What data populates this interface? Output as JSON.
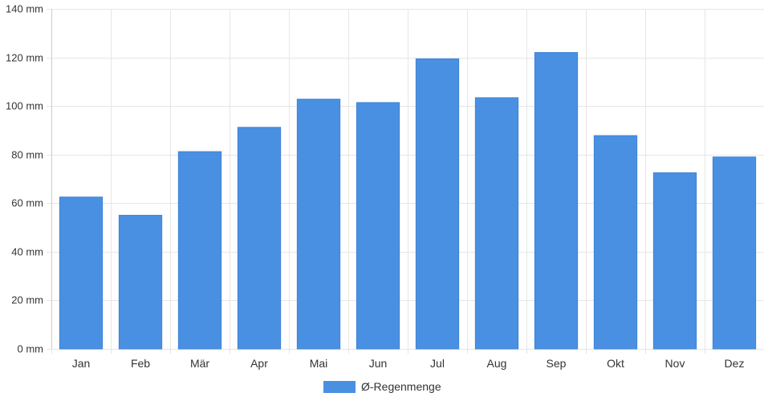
{
  "chart_data": {
    "type": "bar",
    "categories": [
      "Jan",
      "Feb",
      "Mär",
      "Apr",
      "Mai",
      "Jun",
      "Jul",
      "Aug",
      "Sep",
      "Okt",
      "Nov",
      "Dez"
    ],
    "series": [
      {
        "name": "Ø-Regenmenge",
        "values": [
          62.5,
          55,
          81.2,
          91.2,
          102.8,
          101.4,
          119.4,
          103.4,
          122,
          87.8,
          72.5,
          79
        ],
        "color": "#4a90e2"
      }
    ],
    "ylim": [
      0,
      140
    ],
    "yticks": [
      0,
      20,
      40,
      60,
      80,
      100,
      120,
      140
    ],
    "y_unit": " mm",
    "grid": true,
    "legend_position": "bottom-center"
  }
}
